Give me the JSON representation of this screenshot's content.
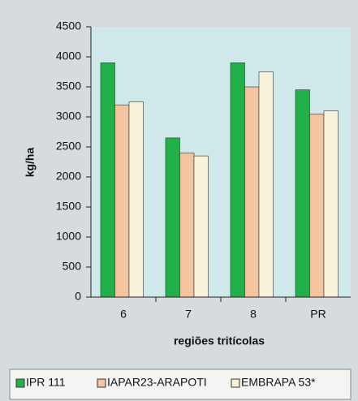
{
  "chart_data": {
    "type": "bar",
    "categories": [
      "6",
      "7",
      "8",
      "PR"
    ],
    "series": [
      {
        "name": "IPR 111",
        "color": "#22b04a",
        "values": [
          3900,
          2650,
          3900,
          3450
        ]
      },
      {
        "name": "IAPAR23-ARAPOTI",
        "color": "#f2c4a0",
        "values": [
          3200,
          2400,
          3500,
          3050
        ]
      },
      {
        "name": "EMBRAPA 53*",
        "color": "#f8f3d8",
        "values": [
          3250,
          2350,
          3750,
          3100
        ]
      }
    ],
    "ylabel": "kg/ha",
    "xlabel": "regiões tritícolas",
    "ylim": [
      0,
      4500
    ],
    "yticks": [
      0,
      500,
      1000,
      1500,
      2000,
      2500,
      3000,
      3500,
      4000,
      4500
    ],
    "grid": false,
    "legend": "bottom"
  }
}
